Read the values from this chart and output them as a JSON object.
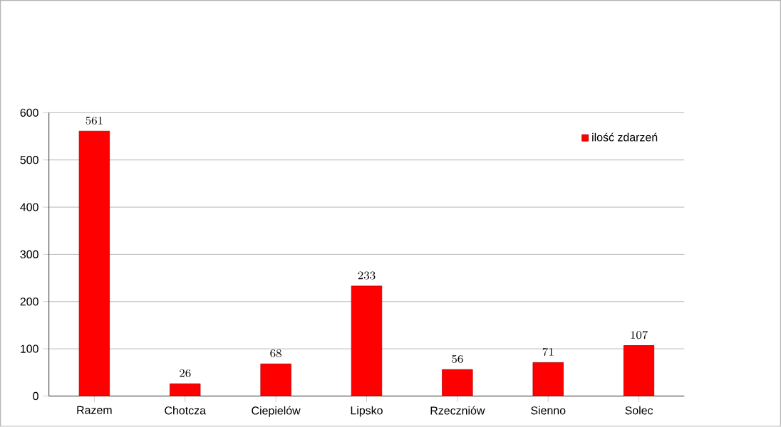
{
  "chart_data": {
    "type": "bar",
    "categories": [
      "Razem",
      "Chotcza",
      "Ciepielów",
      "Lipsko",
      "Rzeczniów",
      "Sienno",
      "Solec"
    ],
    "series": [
      {
        "name": "ilość zdarzeń",
        "color": "#ff0000",
        "values": [
          561,
          26,
          68,
          233,
          56,
          71,
          107
        ]
      }
    ],
    "ylim": [
      0,
      600
    ],
    "yticks": [
      0,
      100,
      200,
      300,
      400,
      500,
      600
    ],
    "grid": "y",
    "legend": "top right",
    "data_labels": true
  }
}
